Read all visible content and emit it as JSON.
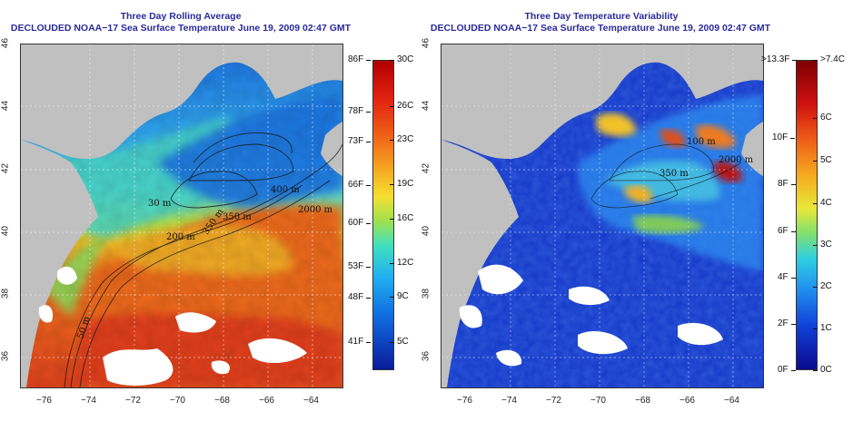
{
  "left": {
    "title": "Three Day Rolling Average",
    "subtitle": "DECLOUDED NOAA−17 Sea Surface Temperature June 19, 2009 02:47 GMT",
    "contours": [
      "400 m",
      "350 m",
      "2000 m",
      "350 m",
      "200 m",
      "50 m",
      "30 m"
    ],
    "colorbar": {
      "fahrenheit": [
        "86F",
        "78F",
        "73F",
        "66F",
        "60F",
        "53F",
        "48F",
        "41F"
      ],
      "celsius": [
        "30C",
        "26C",
        "23C",
        "19C",
        "16C",
        "12C",
        "9C",
        "5C"
      ]
    }
  },
  "right": {
    "title": "Three Day Temperature Variability",
    "subtitle": "DECLOUDED NOAA−17 Sea Surface Temperature June 19, 2009 02:47 GMT",
    "contours": [
      "100 m",
      "2000 m",
      "350 m"
    ],
    "colorbar": {
      "fahrenheit": ">13.3F",
      "fahrenheit_ticks": [
        "10F",
        "8F",
        "6F",
        "4F",
        "2F",
        "0F"
      ],
      "celsius": [
        ">7.4C",
        "6C",
        "5C",
        "4C",
        "3C",
        "2C",
        "1C",
        "0C"
      ]
    }
  },
  "axes": {
    "lat_ticks": [
      "46",
      "44",
      "42",
      "40",
      "38",
      "36"
    ],
    "lon_ticks": [
      "−76",
      "−74",
      "−72",
      "−70",
      "−68",
      "−66",
      "−64"
    ]
  },
  "colors": {
    "land": "#c0c0c0",
    "title": "#2a2a9c"
  }
}
